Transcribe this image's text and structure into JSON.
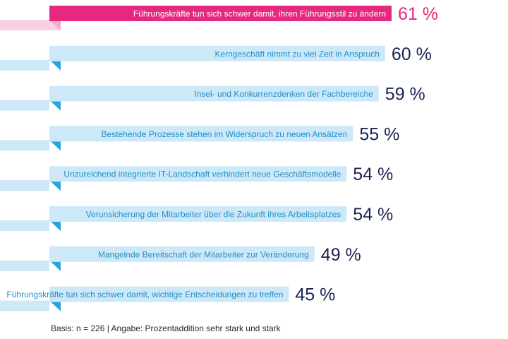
{
  "chart_data": {
    "type": "bar",
    "orientation": "horizontal",
    "unit": "%",
    "categories": [
      "Führungskräfte tun sich schwer damit, ihren Führungsstil zu ändern",
      "Kerngeschäft nimmt zu viel Zeit in Anspruch",
      "Insel- und Konkurrenzdenken der Fachbereiche",
      "Bestehende Prozesse stehen im Widerspruch zu neuen Ansätzen",
      "Unzureichend integrierte IT-Landschaft verhindert neue Geschäftsmodelle",
      "Verunsicherung der Mitarbeiter über die Zukunft ihres Arbeitsplatzes",
      "Mangelnde Bereitschaft der Mitarbeiter zur Veränderung",
      "Führungskräfte tun sich schwer damit, wichtige Entscheidungen zu treffen"
    ],
    "values": [
      61,
      60,
      59,
      55,
      54,
      54,
      49,
      45
    ],
    "value_labels": [
      "61 %",
      "60 %",
      "59 %",
      "55 %",
      "54 %",
      "54 %",
      "49 %",
      "45 %"
    ],
    "highlight_index": 0,
    "colors": {
      "highlight_bar": "#e6287f",
      "highlight_fold": "#f4aac9",
      "highlight_value": "#e6287f",
      "bar": "#cde9f8",
      "bar_fold": "#2aa4dd",
      "bar_label": "#1f8fc9",
      "value": "#1c2350",
      "highlight_label": "#ffffff"
    }
  },
  "footnote": "Basis: n = 226 | Angabe: Prozentaddition sehr stark und stark"
}
